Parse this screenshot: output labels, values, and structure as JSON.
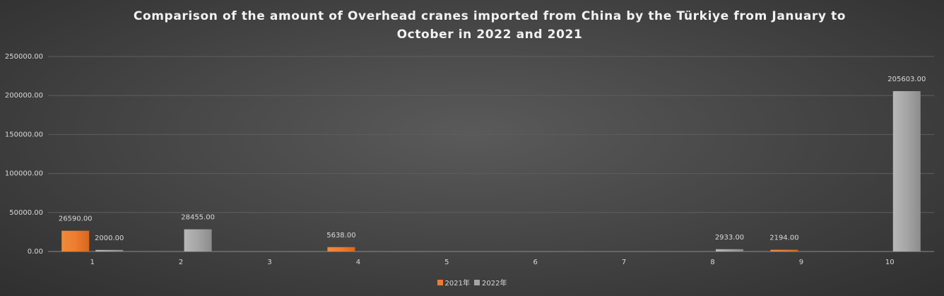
{
  "chart_data": {
    "type": "bar",
    "title": "Comparison of the amount of Overhead cranes imported from China by the Türkiye from January to October in 2022 and 2021",
    "categories": [
      "1",
      "2",
      "3",
      "4",
      "5",
      "6",
      "7",
      "8",
      "9",
      "10"
    ],
    "series": [
      {
        "name": "2021年",
        "color": "#ed7d31",
        "values": [
          26590,
          0,
          0,
          5638,
          0,
          0,
          0,
          0,
          2194,
          0
        ],
        "labels": [
          "26590.00",
          "",
          "",
          "5638.00",
          "",
          "",
          "",
          "",
          "2194.00",
          ""
        ]
      },
      {
        "name": "2022年",
        "color": "#a5a5a5",
        "values": [
          2000,
          28455,
          0,
          0,
          0,
          0,
          0,
          2933,
          0,
          205603
        ],
        "labels": [
          "2000.00",
          "28455.00",
          "",
          "",
          "",
          "",
          "",
          "2933.00",
          "",
          "205603.00"
        ]
      }
    ],
    "yticks": [
      "0.00",
      "50000.00",
      "100000.00",
      "150000.00",
      "200000.00",
      "250000.00"
    ],
    "ylim": [
      0,
      250000
    ],
    "grid": true,
    "legend_position": "bottom"
  }
}
